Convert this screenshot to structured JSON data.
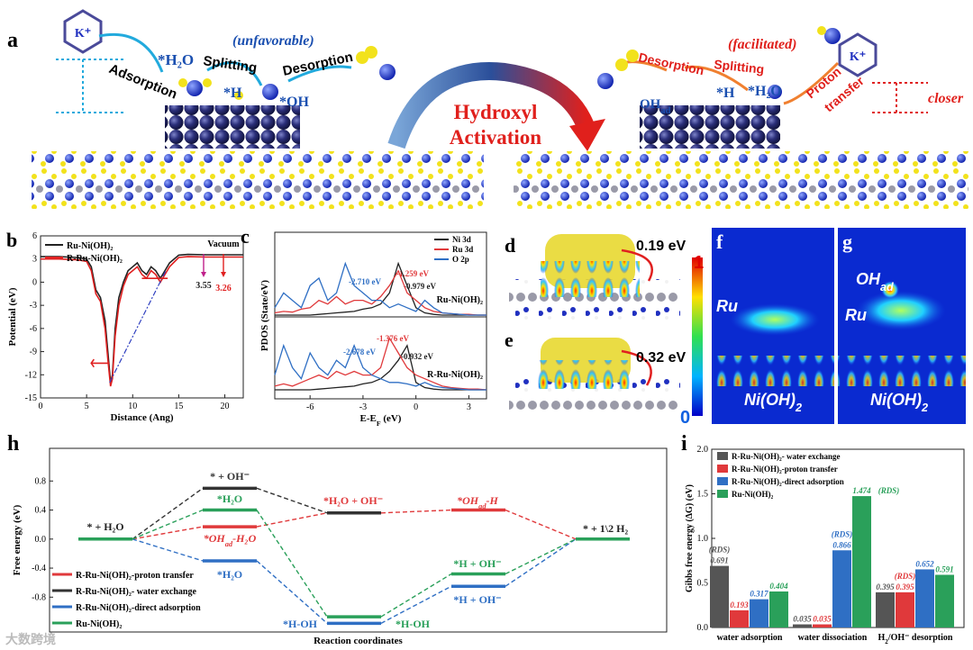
{
  "panel_a": {
    "label": "a",
    "k_left": "K⁺",
    "adsorption": "Adsorption",
    "h2o_left": "*H₂O",
    "splitting_left": "Splitting",
    "unfavorable": "(unfavorable)",
    "desorption_left": "Desorption",
    "h_left": "*H",
    "oh_left": "*OH",
    "hydroxyl": "Hydroxyl",
    "activation": "Activation",
    "facilitated": "(facilitated)",
    "desorption_right": "Desorption",
    "splitting_right": "Splitting",
    "h_right": "*H",
    "h2o_right": "*H₂O",
    "ohad": [
      "OH",
      "ad"
    ],
    "proton": "Proton",
    "transfer": "transfer",
    "k_right": "K⁺",
    "closer": "closer"
  },
  "panel_d": {
    "label": "d",
    "energy": "0.19 eV"
  },
  "panel_e": {
    "label": "e",
    "energy": "0.32 eV",
    "scale_max": "1",
    "scale_min": "0"
  },
  "panel_f": {
    "label": "f",
    "ru": "Ru",
    "support": [
      "Ni(OH)",
      "2"
    ]
  },
  "panel_g": {
    "label": "g",
    "ohad": [
      "OH",
      "ad"
    ],
    "ru": "Ru",
    "support": [
      "Ni(OH)",
      "2"
    ]
  },
  "watermark": "大数跨境",
  "chart_data": [
    {
      "type": "line",
      "label": "b",
      "xlabel": "Distance (Ang)",
      "ylabel": "Potential (eV)",
      "xlim": [
        0,
        22
      ],
      "xticks": [
        0,
        5,
        10,
        15,
        20
      ],
      "ylim": [
        -15,
        6
      ],
      "yticks": [
        -15,
        -12,
        -9,
        -6,
        -3,
        0,
        3,
        6
      ],
      "x": [
        0,
        2,
        4,
        5,
        5.5,
        6,
        6.5,
        7,
        7.3,
        7.6,
        7.8,
        8.1,
        8.5,
        9,
        9.5,
        10,
        10.5,
        11,
        11.5,
        12,
        12.5,
        13,
        13.5,
        14,
        15,
        16,
        18,
        20,
        22
      ],
      "series": [
        {
          "name": "Ru-Ni(OH)₂",
          "color": "#222222",
          "values": [
            3.3,
            3.3,
            3.2,
            3,
            2,
            -1,
            -2,
            -5,
            -9,
            -13,
            -12,
            -6,
            -2,
            0,
            1.5,
            2,
            2.5,
            1.5,
            1,
            2,
            1.5,
            0.5,
            1.5,
            2.5,
            3.5,
            3.6,
            3.55,
            3.55,
            3.55
          ]
        },
        {
          "name": "R-Ru-Ni(OH)₂",
          "color": "#e02020",
          "values": [
            3,
            3,
            2.9,
            2.7,
            1.5,
            -1.5,
            -2.5,
            -6,
            -10,
            -13.5,
            -12.5,
            -7,
            -3,
            -0.5,
            1,
            1.5,
            2,
            1,
            0.5,
            1.5,
            1,
            0,
            1,
            2,
            3.2,
            3.3,
            3.26,
            3.26,
            3.26
          ]
        }
      ],
      "vacuum": "Vacuum",
      "work_functions": [
        3.55,
        3.26
      ]
    },
    {
      "type": "line",
      "label": "c",
      "xlabel": [
        "E-E",
        "F",
        " (eV)"
      ],
      "ylabel": "PDOS (State/eV)",
      "xlim": [
        -8,
        4
      ],
      "xticks": [
        -6,
        -3,
        0,
        3
      ],
      "ylim": [
        0,
        10
      ],
      "x": [
        -8,
        -7.5,
        -7,
        -6.5,
        -6,
        -5.5,
        -5,
        -4.5,
        -4,
        -3.5,
        -3,
        -2.5,
        -2,
        -1.5,
        -1,
        -0.5,
        0,
        0.5,
        1,
        1.5,
        2,
        2.5,
        3,
        3.5,
        4
      ],
      "series": [
        {
          "name": "Ni 3d",
          "color": "#222222"
        },
        {
          "name": "Ru 3d",
          "color": "#e0393b"
        },
        {
          "name": "O 2p",
          "color": "#2f6fc4"
        }
      ],
      "panels": [
        {
          "name": "Ru-Ni(OH)₂",
          "series": [
            {
              "values": [
                0,
                0,
                0,
                0,
                0,
                0.1,
                0.2,
                0.3,
                0.4,
                0.5,
                0.8,
                1,
                1.5,
                3,
                7,
                4,
                1,
                0.3,
                0.1,
                0,
                0,
                0,
                0,
                0,
                0
              ]
            },
            {
              "values": [
                0.3,
                0.5,
                0.4,
                0.8,
                1,
                2,
                1.5,
                2.5,
                1.5,
                2,
                2,
                1.5,
                2.5,
                4,
                6,
                3,
                2,
                1,
                0.5,
                0.3,
                0.2,
                0.1,
                0.1,
                0,
                0
              ]
            },
            {
              "values": [
                1,
                3,
                2,
                1,
                4,
                5,
                2,
                3,
                7,
                4,
                3,
                2,
                2,
                1,
                1.5,
                1,
                0.5,
                2,
                1,
                0.3,
                0.2,
                0.1,
                0,
                0,
                0
              ]
            }
          ]
        },
        {
          "name": "R-Ru-Ni(OH)₂",
          "series": [
            {
              "values": [
                0,
                0,
                0,
                0,
                0,
                0.1,
                0.2,
                0.3,
                0.4,
                0.5,
                0.8,
                1,
                1.5,
                2.5,
                4,
                6,
                1,
                0.3,
                0.1,
                0,
                0,
                0,
                0,
                0,
                0
              ]
            },
            {
              "values": [
                0.5,
                0.8,
                0.5,
                1,
                1.5,
                2,
                1.5,
                2.5,
                2,
                2.5,
                2,
                2,
                3,
                7,
                5,
                3,
                2,
                1.5,
                1,
                0.5,
                0.3,
                0.2,
                0.1,
                0.1,
                0
              ]
            },
            {
              "values": [
                2,
                6,
                3,
                1.5,
                5,
                3,
                2,
                4,
                3,
                6,
                3,
                2,
                1.5,
                1,
                1,
                0.8,
                0.5,
                1,
                0.5,
                0.3,
                0.2,
                0.1,
                0,
                0,
                0
              ]
            }
          ]
        }
      ],
      "annotations": [
        "-2.710 eV",
        "-1.259 eV",
        "-0.979 eV",
        "-1.376 eV",
        "-2.678 eV",
        "-0.932 eV"
      ]
    },
    {
      "type": "levels",
      "label": "h",
      "xlabel": "Reaction coordinates",
      "ylabel": "Free energy (eV)",
      "ylim": [
        -1.28,
        1.25
      ],
      "yticks": [
        -0.8,
        -0.4,
        {
          "value": 0,
          "label": "0.0"
        },
        0.4,
        0.8
      ],
      "categories": [
        null,
        null,
        null,
        null,
        null
      ],
      "series": [
        {
          "name": "R-Ru-Ni(OH)₂-proton transfer",
          "color": "#e0393b",
          "values": [
            0,
            0.17,
            0.36,
            0.4,
            0
          ]
        },
        {
          "name": "R-Ru-Ni(OH)₂- water exchange",
          "color": "#333333",
          "values": [
            0,
            0.7,
            0.36,
            null,
            null
          ]
        },
        {
          "name": "R-Ru-Ni(OH)₂-direct adsorption",
          "color": "#2f6fc4",
          "values": [
            0,
            -0.3,
            -1.16,
            -0.65,
            0
          ]
        },
        {
          "name": "Ru-Ni(OH)₂",
          "color": "#2aa05a",
          "values": [
            0,
            0.4,
            -1.07,
            -0.48,
            0
          ]
        }
      ],
      "level_labels": [
        "* + H₂O",
        "* + OH⁻",
        "*H₂O",
        [
          "*OH",
          "ad",
          "-H₂O"
        ],
        "*H₂O",
        "*H₂O + OH⁻",
        [
          "*OH",
          "ad",
          "-H"
        ],
        "*H-OH",
        "*H-OH",
        "*H + OH⁻",
        "*H + OH⁻",
        "* + 1\\2 H₂"
      ]
    },
    {
      "type": "bar",
      "label": "i",
      "ylabel": "Gibbs free energy (ΔG) (eV)",
      "ylim": [
        0,
        2
      ],
      "yticks": [
        {
          "value": 0,
          "label": "0.0"
        },
        0.5,
        {
          "value": 1,
          "label": "1.0"
        },
        1.5,
        {
          "value": 2,
          "label": "2.0"
        }
      ],
      "categories": [
        "water adsorption",
        "water dissociation",
        [
          "H",
          "2",
          "/OH⁻ desorption"
        ]
      ],
      "series": [
        {
          "name": "R-Ru-Ni(OH)₂- water exchange",
          "color": "#555555",
          "values": [
            0.691,
            0.035,
            0.395
          ]
        },
        {
          "name": "R-Ru-Ni(OH)₂-proton transfer",
          "color": "#e0393b",
          "values": [
            0.193,
            0.035,
            0.395
          ]
        },
        {
          "name": "R-Ru-Ni(OH)₂-direct adsorption",
          "color": "#2f6fc4",
          "values": [
            0.317,
            0.866,
            0.652
          ]
        },
        {
          "name": "Ru-Ni(OH)₂",
          "color": "#2aa05a",
          "values": [
            0.404,
            1.474,
            0.591
          ]
        }
      ],
      "annotations": [
        "(RDS)",
        "(RDS)",
        "(RDS)",
        "(RDS)"
      ]
    }
  ]
}
